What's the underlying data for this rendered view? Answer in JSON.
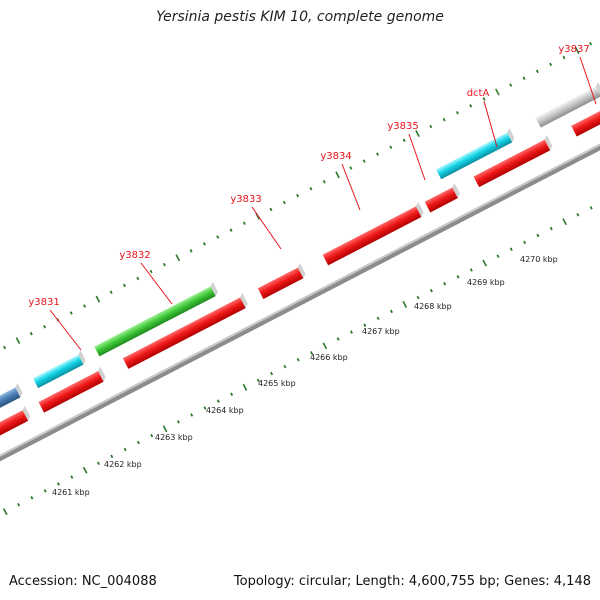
{
  "title": "Yersinia pestis KIM 10, complete genome",
  "footer": {
    "accession": "Accession: NC_004088",
    "summary": "Topology: circular; Length: 4,600,755 bp; Genes: 4,148"
  },
  "colors": {
    "forward_strand": "#e8141c",
    "label": "#e8141c",
    "cyan": "#10d6e6",
    "green": "#3fc93a",
    "blue": "#4b7fb5",
    "grey": "#c4c4c4",
    "tick": "#2a7a2a",
    "backbone": "#888888"
  },
  "gene_labels": [
    "y3831",
    "y3832",
    "y3833",
    "y3834",
    "y3835",
    "dctA",
    "y3837"
  ],
  "kbp_labels": [
    "4261 kbp",
    "4262 kbp",
    "4263 kbp",
    "4264 kbp",
    "4265 kbp",
    "4266 kbp",
    "4267 kbp",
    "4268 kbp",
    "4269 kbp",
    "4270 kbp"
  ]
}
